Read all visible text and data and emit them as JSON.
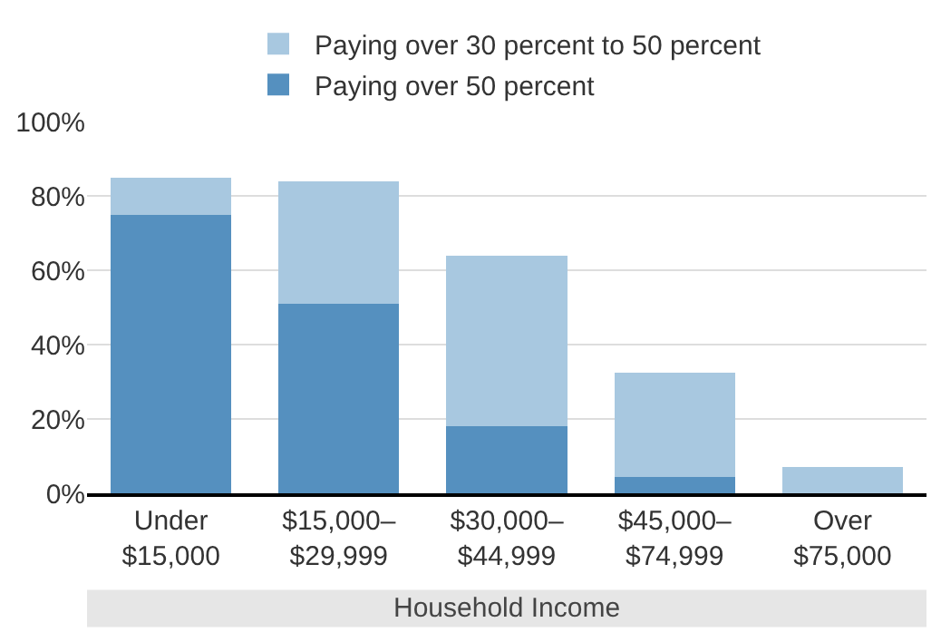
{
  "chart_data": {
    "type": "bar",
    "stacked": true,
    "xlabel": "Household Income",
    "categories": [
      "Under\n$15,000",
      "$15,000–\n$29,999",
      "$30,000–\n$44,999",
      "$45,000–\n$74,999",
      "Over\n$75,000"
    ],
    "series": [
      {
        "name": "Paying over 50 percent",
        "color": "#5590bf",
        "values": [
          75,
          51,
          18,
          4.5,
          0
        ]
      },
      {
        "name": "Paying over 30 percent to 50 percent",
        "color": "#a8c8e0",
        "values": [
          10,
          33,
          46,
          28,
          7
        ]
      }
    ],
    "ylim": [
      0,
      100
    ],
    "yticks": [
      {
        "value": 0,
        "label": "0%"
      },
      {
        "value": 20,
        "label": "20%"
      },
      {
        "value": 40,
        "label": "40%"
      },
      {
        "value": 60,
        "label": "60%"
      },
      {
        "value": 80,
        "label": "80%"
      },
      {
        "value": 100,
        "label": "100%"
      }
    ],
    "grid": "y",
    "legend": "top"
  }
}
